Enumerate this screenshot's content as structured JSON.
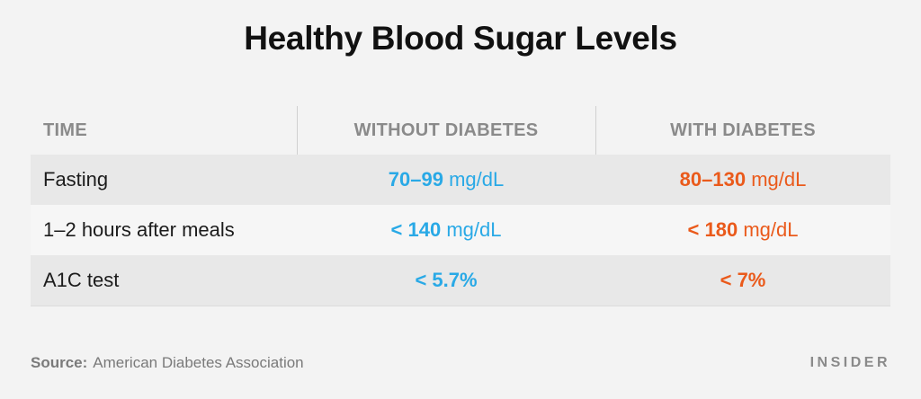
{
  "title": "Healthy Blood Sugar Levels",
  "chart_data": {
    "type": "table",
    "title": "Healthy Blood Sugar Levels",
    "columns": [
      "TIME",
      "WITHOUT DIABETES",
      "WITH DIABETES"
    ],
    "rows": [
      {
        "time": "Fasting",
        "without": {
          "value": "70–99",
          "unit": " mg/dL"
        },
        "with": {
          "value": "80–130",
          "unit": " mg/dL"
        }
      },
      {
        "time": "1–2 hours after meals",
        "without": {
          "value": "< 140",
          "unit": " mg/dL"
        },
        "with": {
          "value": "< 180",
          "unit": " mg/dL"
        }
      },
      {
        "time": "A1C test",
        "without": {
          "value": "< 5.7%",
          "unit": ""
        },
        "with": {
          "value": "< 7%",
          "unit": ""
        }
      }
    ]
  },
  "colors": {
    "without": "#29a9e6",
    "with": "#ea5a1b",
    "background": "#f3f3f3"
  },
  "source": {
    "label": "Source:",
    "text": "American Diabetes Association"
  },
  "brand": "INSIDER"
}
